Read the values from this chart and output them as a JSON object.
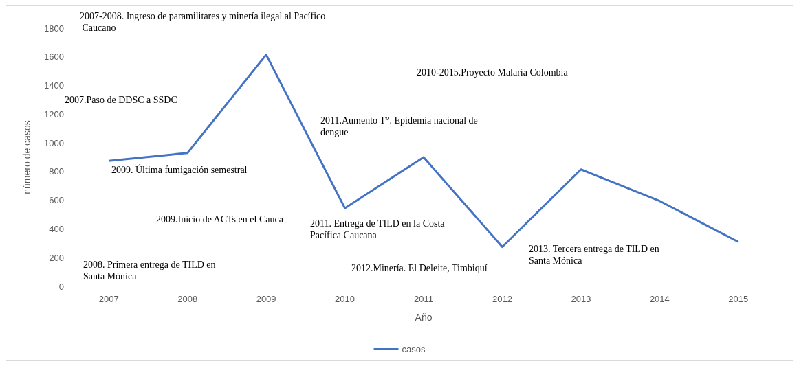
{
  "chart_data": {
    "type": "line",
    "xlabel": "Año",
    "ylabel": "número de casos",
    "categories": [
      "2007",
      "2008",
      "2009",
      "2010",
      "2011",
      "2012",
      "2013",
      "2014",
      "2015"
    ],
    "series": [
      {
        "name": "casos",
        "color": "#4472c4",
        "values": [
          875,
          930,
          1615,
          545,
          900,
          275,
          815,
          595,
          310
        ]
      }
    ],
    "ylim": [
      0,
      1800
    ],
    "yticks": [
      0,
      200,
      400,
      600,
      800,
      1000,
      1200,
      1400,
      1600,
      1800
    ],
    "legend": "bottom",
    "marker": "none",
    "annotations": [
      "2007-2008. Ingreso de paramilitares y minería ilegal al Pacífico Caucano",
      "2010-2015.Proyecto Malaria Colombia",
      "2007.Paso de DDSC a SSDC",
      "2011.Aumento T°. Epidemia nacional de dengue",
      "2009. Última fumigación semestral",
      "2009.Inicio de ACTs en el Cauca",
      "2011. Entrega de TILD en la Costa Pacífica Caucana",
      "2013. Tercera entrega de TILD en Santa Mónica",
      "2008. Primera entrega de TILD en Santa Mónica",
      "2012.Minería. El Deleite, Timbiquí"
    ]
  }
}
